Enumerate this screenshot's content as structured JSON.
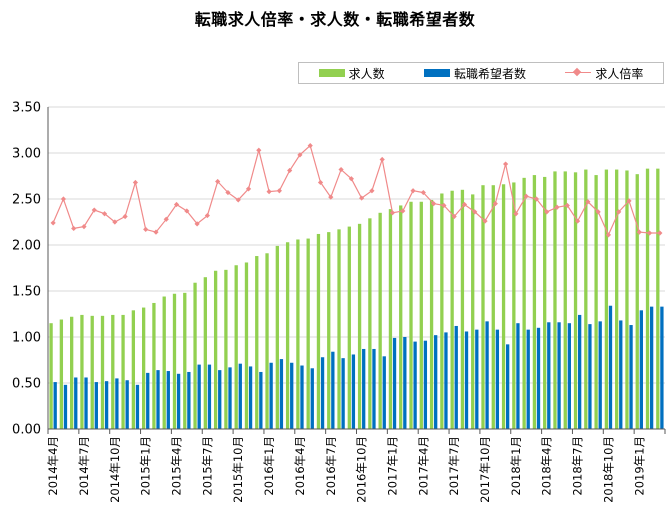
{
  "chart_data": {
    "type": "bar",
    "title": "転職求人倍率・求人数・転職希望者数",
    "ylim": [
      0,
      3.5
    ],
    "yticks": [
      "0.00",
      "0.50",
      "1.00",
      "1.50",
      "2.00",
      "2.50",
      "3.00",
      "3.50"
    ],
    "legend_position": "top-right",
    "colors": {
      "求人数": "#92d050",
      "転職希望者数": "#0070c0",
      "求人倍率": "#f08a8a",
      "grid": "#d9d9d9",
      "axis": "#595959"
    },
    "categories": [
      "2014年4月",
      "2014年5月",
      "2014年6月",
      "2014年7月",
      "2014年8月",
      "2014年9月",
      "2014年10月",
      "2014年11月",
      "2014年12月",
      "2015年1月",
      "2015年2月",
      "2015年3月",
      "2015年4月",
      "2015年5月",
      "2015年6月",
      "2015年7月",
      "2015年8月",
      "2015年9月",
      "2015年10月",
      "2015年11月",
      "2015年12月",
      "2016年1月",
      "2016年2月",
      "2016年3月",
      "2016年4月",
      "2016年5月",
      "2016年6月",
      "2016年7月",
      "2016年8月",
      "2016年9月",
      "2016年10月",
      "2016年11月",
      "2016年12月",
      "2017年1月",
      "2017年2月",
      "2017年3月",
      "2017年4月",
      "2017年5月",
      "2017年6月",
      "2017年7月",
      "2017年8月",
      "2017年9月",
      "2017年10月",
      "2017年11月",
      "2017年12月",
      "2018年1月",
      "2018年2月",
      "2018年3月",
      "2018年4月",
      "2018年5月",
      "2018年6月",
      "2018年7月",
      "2018年8月",
      "2018年9月",
      "2018年10月",
      "2018年11月",
      "2018年12月",
      "2019年1月",
      "2019年2月",
      "2019年3月"
    ],
    "xtick_labels": [
      "2014年4月",
      "2014年7月",
      "2014年10月",
      "2015年1月",
      "2015年4月",
      "2015年7月",
      "2015年10月",
      "2016年1月",
      "2016年4月",
      "2016年7月",
      "2016年10月",
      "2017年1月",
      "2017年4月",
      "2017年7月",
      "2017年10月",
      "2018年1月",
      "2018年4月",
      "2018年7月",
      "2018年10月",
      "2019年1月"
    ],
    "series": [
      {
        "name": "求人数",
        "kind": "bar",
        "values": [
          1.15,
          1.19,
          1.22,
          1.24,
          1.23,
          1.23,
          1.24,
          1.24,
          1.29,
          1.32,
          1.37,
          1.44,
          1.47,
          1.48,
          1.59,
          1.65,
          1.72,
          1.73,
          1.78,
          1.81,
          1.88,
          1.91,
          1.99,
          2.03,
          2.06,
          2.07,
          2.12,
          2.14,
          2.17,
          2.2,
          2.23,
          2.29,
          2.35,
          2.39,
          2.43,
          2.47,
          2.47,
          2.49,
          2.56,
          2.59,
          2.6,
          2.55,
          2.65,
          2.65,
          2.66,
          2.68,
          2.73,
          2.76,
          2.74,
          2.8,
          2.8,
          2.79,
          2.82,
          2.76,
          2.82,
          2.82,
          2.81,
          2.77,
          2.83,
          2.83
        ]
      },
      {
        "name": "転職希望者数",
        "kind": "bar",
        "values": [
          0.51,
          0.48,
          0.56,
          0.56,
          0.51,
          0.52,
          0.55,
          0.53,
          0.48,
          0.61,
          0.64,
          0.63,
          0.6,
          0.62,
          0.7,
          0.7,
          0.64,
          0.67,
          0.71,
          0.68,
          0.62,
          0.72,
          0.76,
          0.72,
          0.69,
          0.66,
          0.78,
          0.84,
          0.77,
          0.81,
          0.87,
          0.87,
          0.79,
          0.99,
          1.0,
          0.95,
          0.96,
          1.02,
          1.05,
          1.12,
          1.06,
          1.08,
          1.17,
          1.08,
          0.92,
          1.15,
          1.08,
          1.1,
          1.16,
          1.16,
          1.15,
          1.24,
          1.14,
          1.17,
          1.34,
          1.18,
          1.13,
          1.29,
          1.33,
          1.33
        ]
      },
      {
        "name": "求人倍率",
        "kind": "line",
        "values": [
          2.24,
          2.5,
          2.18,
          2.2,
          2.38,
          2.34,
          2.25,
          2.31,
          2.68,
          2.17,
          2.14,
          2.28,
          2.44,
          2.37,
          2.23,
          2.32,
          2.69,
          2.57,
          2.49,
          2.61,
          3.03,
          2.58,
          2.59,
          2.81,
          2.98,
          3.08,
          2.68,
          2.52,
          2.82,
          2.72,
          2.51,
          2.59,
          2.93,
          2.35,
          2.37,
          2.59,
          2.57,
          2.45,
          2.43,
          2.31,
          2.44,
          2.36,
          2.26,
          2.45,
          2.88,
          2.34,
          2.53,
          2.5,
          2.36,
          2.41,
          2.43,
          2.26,
          2.47,
          2.36,
          2.11,
          2.36,
          2.48,
          2.14,
          2.13,
          2.13
        ]
      }
    ]
  }
}
